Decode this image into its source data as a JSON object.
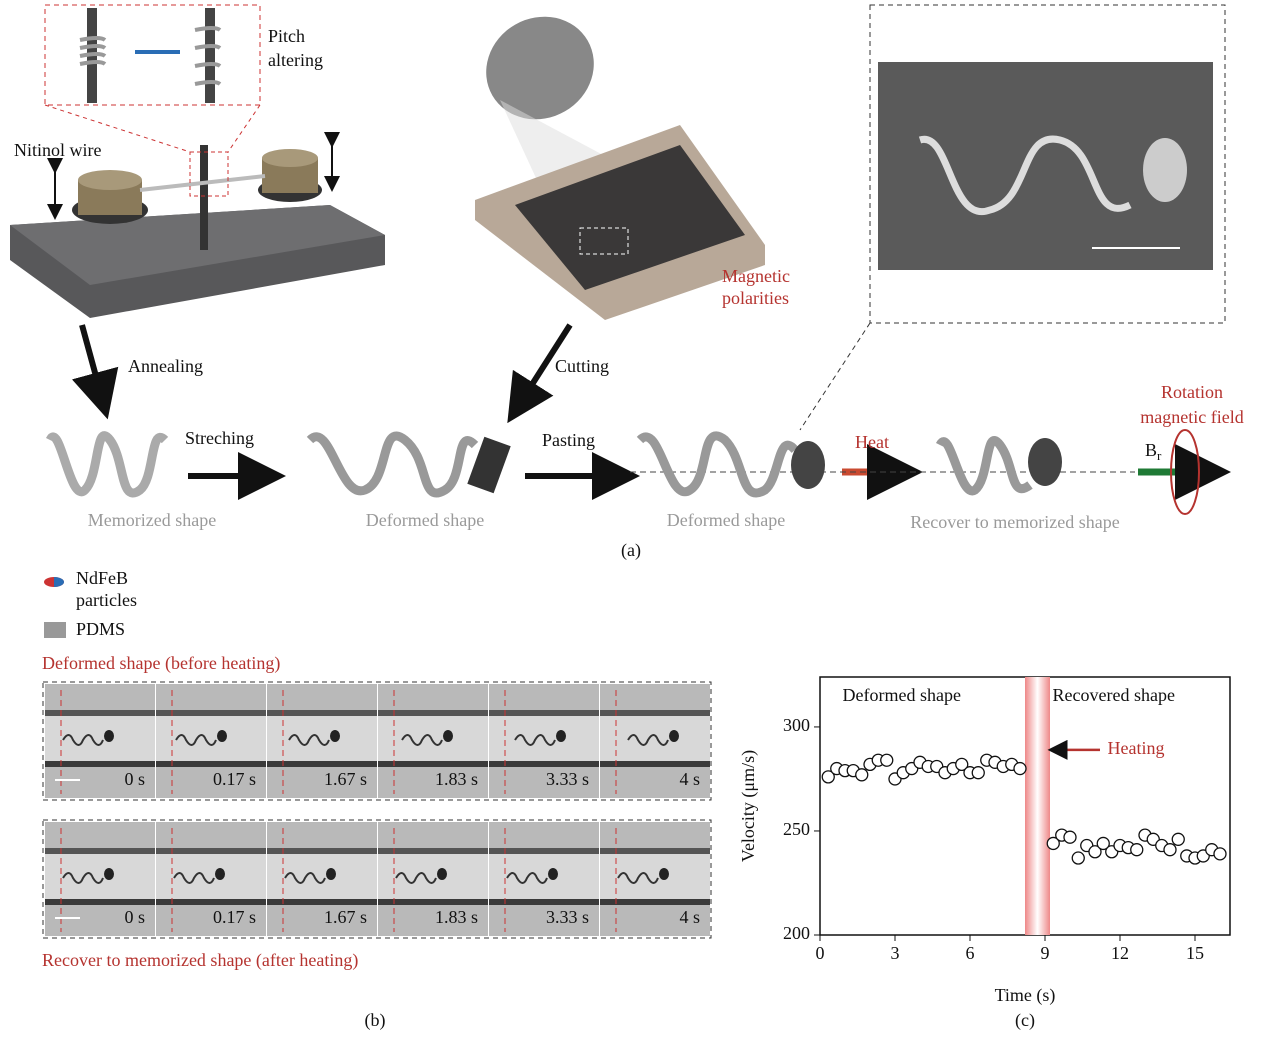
{
  "panel_a": {
    "pitch_label": [
      "Pitch",
      "altering"
    ],
    "nitinol_label": "Nitinol wire",
    "magnetic_label": [
      "Magnetic",
      "polarities"
    ],
    "annealing": "Annealing",
    "cutting": "Cutting",
    "streching": "Streching",
    "pasting": "Pasting",
    "heat": "Heat",
    "rotation_label": [
      "Rotation",
      "magnetic field"
    ],
    "field_symbol": "B",
    "field_subscript": "r",
    "shapes": [
      "Memorized shape",
      "Deformed shape",
      "Deformed shape",
      "Recover to memorized shape"
    ],
    "caption": "(a)"
  },
  "legend": {
    "particles": [
      "NdFeB",
      "particles"
    ],
    "pdms": "PDMS"
  },
  "panel_b": {
    "top_title": "Deformed shape (before heating)",
    "bottom_title": "Recover to memorized shape (after heating)",
    "times": [
      "0 s",
      "0.17 s",
      "1.67 s",
      "1.83 s",
      "3.33 s",
      "4 s"
    ],
    "caption": "(b)"
  },
  "chart_data": {
    "type": "scatter",
    "xlabel": "Time (s)",
    "ylabel": "Velocity (μm/s)",
    "caption": "(c)",
    "annotations": {
      "deformed": "Deformed shape",
      "recovered": "Recovered shape",
      "heating": "Heating"
    },
    "heating_band": [
      8.2,
      9.2
    ],
    "xlim": [
      0,
      16.4
    ],
    "ylim": [
      200,
      324
    ],
    "xticks": [
      0,
      3,
      6,
      9,
      12,
      15
    ],
    "yticks": [
      200,
      250,
      300
    ],
    "x": [
      0.33,
      0.67,
      1.0,
      1.33,
      1.67,
      2.0,
      2.33,
      2.67,
      3.0,
      3.33,
      3.67,
      4.0,
      4.33,
      4.67,
      5.0,
      5.33,
      5.67,
      6.0,
      6.33,
      6.67,
      7.0,
      7.33,
      7.67,
      8.0,
      9.33,
      9.67,
      10.0,
      10.33,
      10.67,
      11.0,
      11.33,
      11.67,
      12.0,
      12.33,
      12.67,
      13.0,
      13.33,
      13.67,
      14.0,
      14.33,
      14.67,
      15.0,
      15.33,
      15.67,
      16.0
    ],
    "series": [
      {
        "color": "#ffffff",
        "values": [
          276,
          280,
          279,
          279,
          277,
          282,
          284,
          284,
          275,
          278,
          280,
          283,
          281,
          281,
          278,
          280,
          282,
          278,
          278,
          284,
          283,
          281,
          282,
          280,
          244,
          248,
          247,
          237,
          243,
          240,
          244,
          240,
          243,
          242,
          241,
          248,
          246,
          243,
          241,
          246,
          238,
          237,
          238,
          241,
          239
        ]
      }
    ]
  }
}
